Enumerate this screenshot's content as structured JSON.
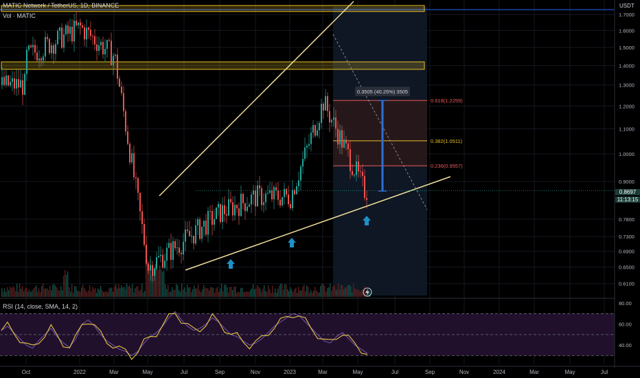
{
  "header": {
    "symbol_line": "MATIC Network / TetherUS, 1D, BINANCE",
    "volume_label": "Vol · MATIC",
    "currency": "USDT"
  },
  "rsi_header": "RSI (14, close, SMA, 14, 2)",
  "current_price": {
    "value": "0.8697",
    "countdown": "11:13:15"
  },
  "measure_label": "0.3505 (40.25%) 3505",
  "fib_labels": [
    "0.618(1.2259)",
    "0.382(1.0511)",
    "0.236(0.9557)"
  ],
  "colors": {
    "up": "#26a69a",
    "down": "#ef5350",
    "trendline": "#f5e19c",
    "zone": "#e6c02a",
    "arrow": "#1e90c8",
    "rsi_line": "#e8c547",
    "rsi_band": "#21102c",
    "fib_red": "#f05a5a",
    "fib_yellow": "#e6c02a",
    "measure": "#2f6fd6"
  },
  "icons": [
    "chevron-up-arrow-icon",
    "lightning-bolt-icon"
  ],
  "chart_data": [
    {
      "type": "candlestick",
      "title": "MATIC Network / TetherUS, 1D, BINANCE",
      "y_axis_ticks": [
        "1.7000",
        "1.6000",
        "1.5000",
        "1.4000",
        "1.3000",
        "1.2000",
        "1.1000",
        "1.0000",
        "0.9000",
        "0.8697",
        "0.7800",
        "0.7300",
        "0.6900",
        "0.6500",
        "0.6100"
      ],
      "x_axis_ticks": [
        "Oct",
        "2022",
        "Mar",
        "May",
        "Jul",
        "Sep",
        "Nov",
        "2023",
        "Mar",
        "May",
        "Jul",
        "Sep",
        "Nov",
        "2024",
        "Mar",
        "May",
        "Jul"
      ],
      "y_scale": "log",
      "ylim": [
        0.58,
        1.76
      ],
      "close_series": [
        [
          "Oct",
          1.45
        ],
        [
          "2022",
          1.62
        ],
        [
          "Mar",
          1.45
        ],
        [
          "May",
          0.65
        ],
        [
          "Jul",
          0.72
        ],
        [
          "Sep",
          0.8
        ],
        [
          "Nov",
          0.85
        ],
        [
          "2023",
          0.85
        ],
        [
          "Mar",
          1.22
        ],
        [
          "May",
          0.87
        ]
      ],
      "horizontal_zones": [
        [
          1.72,
          1.76
        ],
        [
          1.38,
          1.42
        ]
      ],
      "fibonacci": [
        {
          "ratio": 0.618,
          "price": 1.2259
        },
        {
          "ratio": 0.382,
          "price": 1.0511
        },
        {
          "ratio": 0.236,
          "price": 0.9557
        }
      ],
      "measurement": {
        "change": 0.3505,
        "percent": 40.25,
        "value": "3505"
      },
      "last_price": 0.8697,
      "grid": true
    },
    {
      "type": "line",
      "title": "RSI (14, close, SMA, 14, 2)",
      "y_axis_ticks": [
        "80.00",
        "60.00",
        "40.00"
      ],
      "levels": [
        70,
        50,
        30
      ],
      "ylim": [
        25,
        82
      ],
      "series": [
        {
          "values": [
            54,
            58,
            52,
            46,
            40,
            37,
            44,
            50,
            56,
            48,
            42,
            38,
            46,
            60,
            64,
            58,
            50,
            44,
            40,
            36,
            34,
            30,
            34,
            42,
            48,
            52,
            58,
            66,
            72,
            64,
            58,
            54,
            56,
            60,
            66,
            62,
            56,
            50,
            48,
            44,
            40,
            42,
            46,
            52,
            58,
            62,
            66,
            70,
            68,
            62,
            56,
            50,
            44,
            42,
            48,
            52,
            46,
            40,
            36,
            32
          ]
        }
      ]
    }
  ]
}
